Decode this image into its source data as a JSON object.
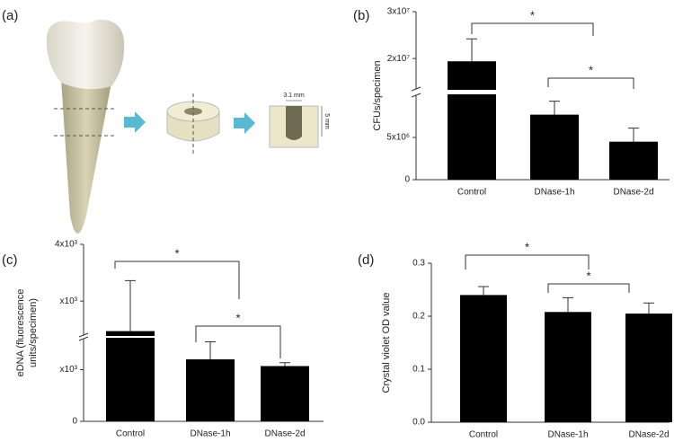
{
  "figure_a": {
    "panel_label": "(a)",
    "dims": [
      "3.1 mm",
      "5 mm"
    ]
  },
  "chart_data": [
    {
      "type": "bar",
      "panel_label": "(b)",
      "ylabel": [
        "CFUs/specimen"
      ],
      "categories": [
        "Control",
        "DNase-1h",
        "DNase-2d"
      ],
      "values": [
        19400000,
        7700000,
        4500000
      ],
      "errors": [
        4800000,
        1600000,
        1600000
      ],
      "color": "#000000",
      "ylim": [
        0,
        30000000
      ],
      "ybreak": [
        10000000,
        13500000
      ],
      "yticks": [
        0,
        {
          "value": 5000000,
          "label": "5x10⁶"
        },
        {
          "value": 20000000,
          "label": "2x10⁷"
        },
        {
          "value": 30000000,
          "label": "3x10⁷"
        }
      ],
      "annotations": [
        "*",
        "*"
      ]
    },
    {
      "type": "bar",
      "panel_label": "(c)",
      "ylabel": [
        "eDNA (fluorescence",
        "units/specimen)"
      ],
      "categories": [
        "Control",
        "DNase-1h",
        "DNase-2d"
      ],
      "values": [
        2470,
        1200,
        1070
      ],
      "errors": [
        890,
        340,
        65
      ],
      "color": "#000000",
      "ylim": [
        0,
        4000
      ],
      "ybreak": [
        1600,
        2400
      ],
      "yticks": [
        0,
        {
          "value": 1000,
          "label": "x10³"
        },
        {
          "value": 3000,
          "label": "x10³"
        },
        {
          "value": 4000,
          "label": "4x10³"
        }
      ],
      "annotations": [
        "*",
        "*"
      ]
    },
    {
      "type": "bar",
      "panel_label": "(d)",
      "ylabel": [
        "Crystal violet OD value"
      ],
      "categories": [
        "Control",
        "DNase-1h",
        "DNase-2d"
      ],
      "values": [
        0.24,
        0.208,
        0.205
      ],
      "errors": [
        0.016,
        0.027,
        0.02
      ],
      "color": "#000000",
      "ylim": [
        0,
        0.3
      ],
      "yticks": [
        {
          "value": 0,
          "label": "0.0"
        },
        0.1,
        0.2,
        0.3
      ],
      "annotations": [
        "*",
        "*"
      ]
    }
  ]
}
